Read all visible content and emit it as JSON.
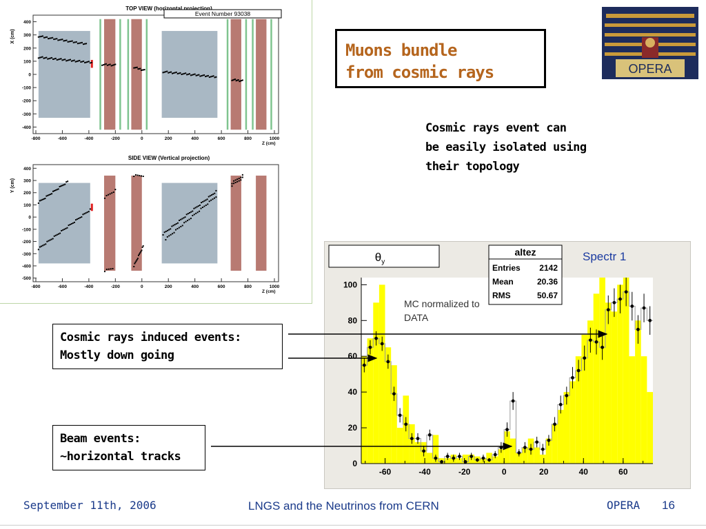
{
  "slide": {
    "title_line1": "Muons bundle",
    "title_line2": "from cosmic rays",
    "note_lines": [
      "Cosmic rays event can",
      "be easily isolated using",
      "their topology"
    ],
    "callout_cosmic": [
      "Cosmic rays induced events:",
      "Mostly down going"
    ],
    "callout_beam": [
      "Beam events:",
      "~horizontal tracks"
    ],
    "footer_date": "September 11th, 2006",
    "footer_center": "LNGS and the Neutrinos from CERN",
    "footer_right": "OPERA",
    "page_number": "16",
    "logo_text": "OPERA"
  },
  "event_display": {
    "top_title": "TOP VIEW (horizontal projection)",
    "event_number": "Event Number 93038",
    "top_ylabel": "X (cm)",
    "side_title": "SIDE VIEW (Vertical projection)",
    "side_ylabel": "Y (cm)",
    "xlabel": "Z (cm)",
    "x_ticks": [
      "-800",
      "-600",
      "-400",
      "-200",
      "0",
      "200",
      "400",
      "600",
      "800",
      "1000"
    ],
    "top_y_ticks": [
      "400",
      "300",
      "200",
      "100",
      "0",
      "-100",
      "-200",
      "-300",
      "-400"
    ],
    "side_y_ticks": [
      "400",
      "300",
      "200",
      "100",
      "0",
      "-100",
      "-200",
      "-300",
      "-400",
      "-500"
    ]
  },
  "chart_data": {
    "type": "bar",
    "title": "θy",
    "stats": {
      "name": "altez",
      "rows": [
        {
          "label": "Entries",
          "value": "2142"
        },
        {
          "label": "Mean",
          "value": "20.36"
        },
        {
          "label": "RMS",
          "value": "50.67"
        }
      ]
    },
    "series_label": "Spectr 1",
    "annotation": [
      "MC normalized to",
      "DATA"
    ],
    "x_ticks": [
      -60,
      -40,
      -20,
      0,
      20,
      40,
      60
    ],
    "y_ticks": [
      0,
      20,
      40,
      60,
      80,
      100
    ],
    "xlim": [
      -72,
      75
    ],
    "ylim": [
      0,
      104
    ],
    "bin_width": 3,
    "mc_bins": [
      [
        -72,
        60
      ],
      [
        -69,
        70
      ],
      [
        -66,
        90
      ],
      [
        -63,
        100
      ],
      [
        -60,
        65
      ],
      [
        -57,
        55
      ],
      [
        -54,
        20
      ],
      [
        -51,
        38
      ],
      [
        -48,
        22
      ],
      [
        -45,
        12
      ],
      [
        -42,
        12
      ],
      [
        -39,
        6
      ],
      [
        -36,
        16
      ],
      [
        -33,
        3
      ],
      [
        -30,
        3
      ],
      [
        -27,
        5
      ],
      [
        -24,
        3
      ],
      [
        -21,
        5
      ],
      [
        -18,
        5
      ],
      [
        -15,
        4
      ],
      [
        -12,
        3
      ],
      [
        -9,
        6
      ],
      [
        -6,
        4
      ],
      [
        -3,
        8
      ],
      [
        0,
        18
      ],
      [
        3,
        14
      ],
      [
        6,
        6
      ],
      [
        9,
        9
      ],
      [
        12,
        14
      ],
      [
        15,
        9
      ],
      [
        18,
        5
      ],
      [
        21,
        14
      ],
      [
        24,
        22
      ],
      [
        27,
        30
      ],
      [
        30,
        40
      ],
      [
        33,
        46
      ],
      [
        36,
        60
      ],
      [
        39,
        72
      ],
      [
        42,
        80
      ],
      [
        45,
        95
      ],
      [
        48,
        104
      ],
      [
        51,
        90
      ],
      [
        54,
        85
      ],
      [
        57,
        100
      ],
      [
        60,
        104
      ],
      [
        63,
        60
      ],
      [
        66,
        80
      ],
      [
        69,
        60
      ],
      [
        72,
        40
      ]
    ],
    "data_points": [
      [
        -70.5,
        55,
        4
      ],
      [
        -67.5,
        65,
        4
      ],
      [
        -64.5,
        70,
        4
      ],
      [
        -61.5,
        67,
        4
      ],
      [
        -58.5,
        57,
        4
      ],
      [
        -55.5,
        39,
        4
      ],
      [
        -52.5,
        27,
        4
      ],
      [
        -49.5,
        22,
        4
      ],
      [
        -46.5,
        14,
        3
      ],
      [
        -43.5,
        14,
        3
      ],
      [
        -40.5,
        7,
        3
      ],
      [
        -37.5,
        16,
        3
      ],
      [
        -34.5,
        3,
        2
      ],
      [
        -31.5,
        1,
        1
      ],
      [
        -28.5,
        4,
        2
      ],
      [
        -25.5,
        3,
        2
      ],
      [
        -22.5,
        4,
        2
      ],
      [
        -19.5,
        1,
        1
      ],
      [
        -16.5,
        4,
        2
      ],
      [
        -13.5,
        2,
        1
      ],
      [
        -10.5,
        3,
        2
      ],
      [
        -7.5,
        2,
        1
      ],
      [
        -4.5,
        5,
        2
      ],
      [
        -1.5,
        9,
        3
      ],
      [
        1.5,
        19,
        4
      ],
      [
        4.5,
        35,
        5
      ],
      [
        7.5,
        6,
        2
      ],
      [
        10.5,
        9,
        3
      ],
      [
        13.5,
        8,
        3
      ],
      [
        16.5,
        12,
        3
      ],
      [
        19.5,
        8,
        3
      ],
      [
        22.5,
        13,
        3
      ],
      [
        25.5,
        22,
        4
      ],
      [
        28.5,
        33,
        5
      ],
      [
        31.5,
        38,
        5
      ],
      [
        34.5,
        48,
        6
      ],
      [
        37.5,
        52,
        6
      ],
      [
        40.5,
        59,
        7
      ],
      [
        43.5,
        69,
        7
      ],
      [
        46.5,
        68,
        7
      ],
      [
        49.5,
        65,
        7
      ],
      [
        52.5,
        86,
        8
      ],
      [
        55.5,
        90,
        8
      ],
      [
        58.5,
        92,
        8
      ],
      [
        61.5,
        96,
        8
      ],
      [
        64.5,
        88,
        8
      ],
      [
        67.5,
        75,
        8
      ],
      [
        70.5,
        87,
        8
      ],
      [
        73.5,
        80,
        8
      ]
    ]
  },
  "colors": {
    "mc_fill": "#ffff00",
    "hist_line": "#999999",
    "title_orange": "#b5651d",
    "footer_blue": "#1a3a8a",
    "detector_grey": "#a9b8c4",
    "detector_red": "#b87a72",
    "detector_green": "#7fc48f"
  }
}
